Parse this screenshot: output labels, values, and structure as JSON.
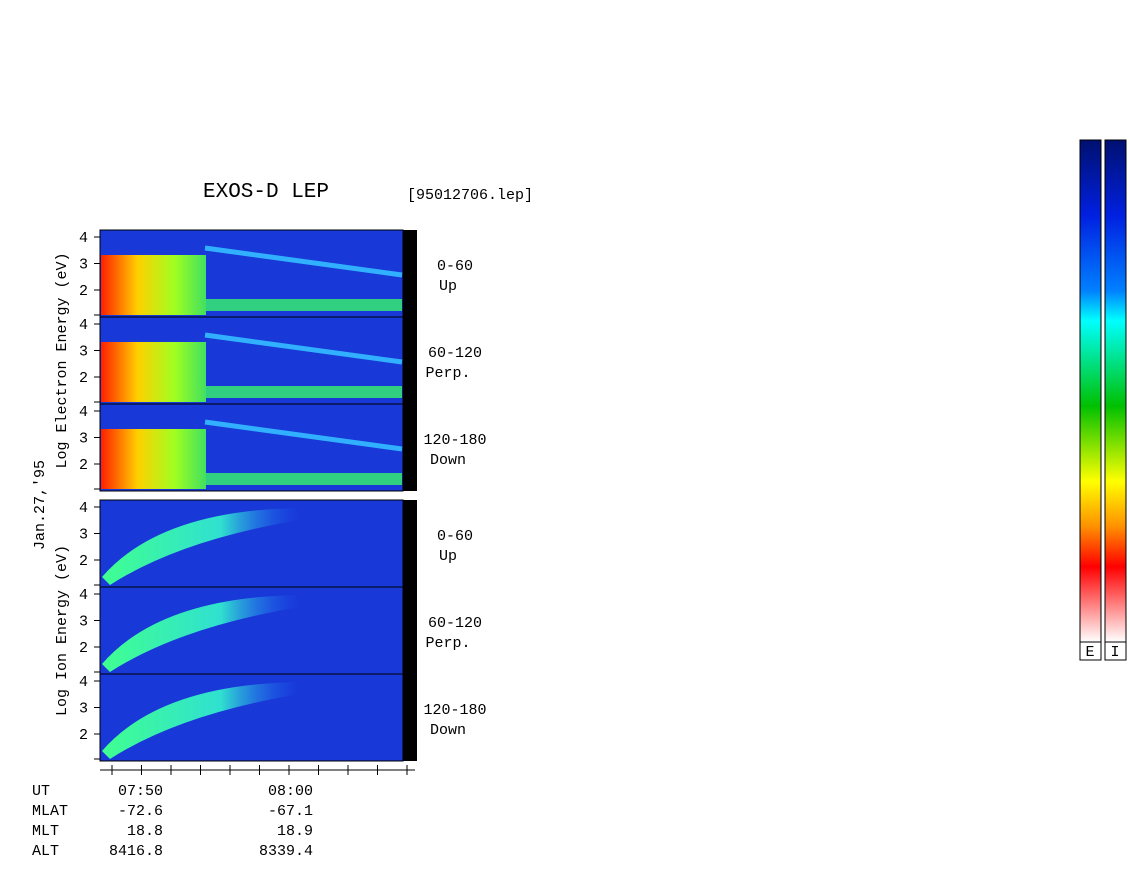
{
  "title": "EXOS-D LEP",
  "file": "[95012706.lep]",
  "date_label": "Jan.27,'95",
  "yticks": [
    "2",
    "3",
    "4"
  ],
  "groups": [
    {
      "axis_label": "Log  Electron  Energy  (eV)",
      "panels": [
        {
          "angle": "0-60",
          "direction": "Up"
        },
        {
          "angle": "60-120",
          "direction": "Perp."
        },
        {
          "angle": "120-180",
          "direction": "Down"
        }
      ]
    },
    {
      "axis_label": "Log  Ion  Energy  (eV)",
      "panels": [
        {
          "angle": "0-60",
          "direction": "Up"
        },
        {
          "angle": "60-120",
          "direction": "Perp."
        },
        {
          "angle": "120-180",
          "direction": "Down"
        }
      ]
    }
  ],
  "footer": {
    "rows": [
      [
        "UT",
        "07:50",
        "08:00"
      ],
      [
        "MLAT",
        "-72.6",
        "-67.1"
      ],
      [
        "MLT",
        "18.8",
        "18.9"
      ],
      [
        "ALT",
        "8416.8",
        "8339.4"
      ]
    ]
  },
  "colorbar_labels": [
    "E",
    "I"
  ]
}
